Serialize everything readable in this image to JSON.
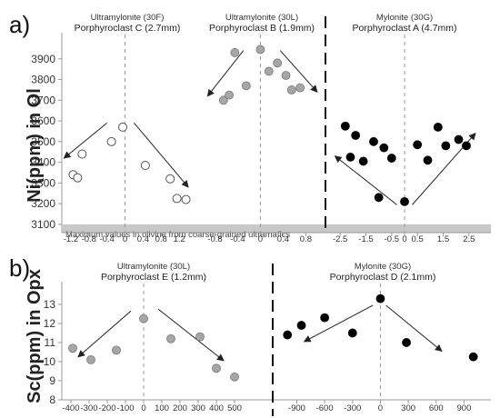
{
  "chart_data": [
    {
      "type": "scatter",
      "panel_label": "a)",
      "ylabel": "Ni(ppm) in Ol",
      "ylim": [
        3060,
        4000
      ],
      "yticks": [
        3100,
        3200,
        3300,
        3400,
        3500,
        3600,
        3700,
        3800,
        3900
      ],
      "shaded_band": {
        "y_from": 3060,
        "y_to": 3100,
        "label": "Maximum values in olivine from coarse-grained ultramafics"
      },
      "subplots": [
        {
          "title1": "Ultramylonite (30F)",
          "title2": "Porphyroclast C (2.7mm)",
          "xlim": [
            -1.4,
            1.5
          ],
          "xticks": [
            -1.2,
            -0.8,
            -0.4,
            0,
            0.4,
            0.8,
            1.2
          ],
          "marker": "open",
          "points": [
            {
              "x": -1.15,
              "y": 3340
            },
            {
              "x": -1.05,
              "y": 3325
            },
            {
              "x": -0.95,
              "y": 3440
            },
            {
              "x": -0.3,
              "y": 3500
            },
            {
              "x": -0.05,
              "y": 3570
            },
            {
              "x": 0.45,
              "y": 3385
            },
            {
              "x": 1.0,
              "y": 3320
            },
            {
              "x": 1.15,
              "y": 3225
            },
            {
              "x": 1.35,
              "y": 3220
            }
          ],
          "arrows": [
            {
              "from": [
                -0.4,
                3590
              ],
              "to": [
                -1.35,
                3420
              ]
            },
            {
              "from": [
                0.2,
                3590
              ],
              "to": [
                1.4,
                3280
              ]
            }
          ]
        },
        {
          "title1": "Ultramylonite (30L)",
          "title2": "Porphyroclast B (1.9mm)",
          "xlim": [
            -1.0,
            1.05
          ],
          "xticks": [
            -0.8,
            -0.4,
            0,
            0.4,
            0.8
          ],
          "marker": "gray",
          "points": [
            {
              "x": -0.65,
              "y": 3700
            },
            {
              "x": -0.55,
              "y": 3725
            },
            {
              "x": -0.45,
              "y": 3930
            },
            {
              "x": -0.25,
              "y": 3770
            },
            {
              "x": 0.0,
              "y": 3945
            },
            {
              "x": 0.15,
              "y": 3840
            },
            {
              "x": 0.3,
              "y": 3880
            },
            {
              "x": 0.45,
              "y": 3820
            },
            {
              "x": 0.55,
              "y": 3750
            },
            {
              "x": 0.7,
              "y": 3760
            }
          ],
          "arrows": [
            {
              "from": [
                -0.3,
                3940
              ],
              "to": [
                -0.93,
                3720
              ]
            },
            {
              "from": [
                0.35,
                3940
              ],
              "to": [
                1.0,
                3740
              ]
            }
          ]
        },
        {
          "title1": "Mylonite (30G)",
          "title2": "Porphyroclast A (4.7mm)",
          "xlim": [
            -3.0,
            3.0
          ],
          "xticks": [
            -2.5,
            -1.5,
            -0.5,
            0,
            0.5,
            1.5,
            2.5
          ],
          "marker": "filled",
          "points": [
            {
              "x": -2.3,
              "y": 3575
            },
            {
              "x": -1.9,
              "y": 3530
            },
            {
              "x": -2.1,
              "y": 3425
            },
            {
              "x": -1.6,
              "y": 3405
            },
            {
              "x": -1.2,
              "y": 3500
            },
            {
              "x": -0.8,
              "y": 3470
            },
            {
              "x": -0.5,
              "y": 3420
            },
            {
              "x": -1.0,
              "y": 3230
            },
            {
              "x": 0.0,
              "y": 3210
            },
            {
              "x": 0.5,
              "y": 3485
            },
            {
              "x": 0.9,
              "y": 3410
            },
            {
              "x": 1.3,
              "y": 3570
            },
            {
              "x": 1.6,
              "y": 3480
            },
            {
              "x": 2.1,
              "y": 3510
            },
            {
              "x": 2.4,
              "y": 3480
            }
          ],
          "arrows": [
            {
              "from": [
                -0.3,
                3195
              ],
              "to": [
                -2.7,
                3430
              ]
            },
            {
              "from": [
                0.3,
                3195
              ],
              "to": [
                2.75,
                3540
              ]
            }
          ]
        }
      ]
    },
    {
      "type": "scatter",
      "panel_label": "b)",
      "ylabel": "Sc(ppm) in Opx",
      "ylim": [
        8,
        13.9
      ],
      "yticks": [
        8,
        9,
        10,
        11,
        12,
        13
      ],
      "subplots": [
        {
          "title1": "Ultramylonite (30L)",
          "title2": "Porphyroclast E (1.2mm)",
          "xlim": [
            -450,
            560
          ],
          "xticks": [
            -400,
            -300,
            -200,
            -100,
            0,
            100,
            200,
            300,
            400,
            500
          ],
          "marker": "gray",
          "points": [
            {
              "x": -390,
              "y": 10.7
            },
            {
              "x": -290,
              "y": 10.1
            },
            {
              "x": -150,
              "y": 10.6
            },
            {
              "x": 0,
              "y": 12.25
            },
            {
              "x": 150,
              "y": 11.2
            },
            {
              "x": 310,
              "y": 11.3
            },
            {
              "x": 400,
              "y": 9.65
            },
            {
              "x": 500,
              "y": 9.2
            }
          ],
          "arrows": [
            {
              "from": [
                -70,
                12.65
              ],
              "to": [
                -360,
                10.25
              ]
            },
            {
              "from": [
                80,
                12.75
              ],
              "to": [
                440,
                10.05
              ]
            }
          ]
        },
        {
          "title1": "Mylonite (30G)",
          "title2": "Porphyroclast D (2.1mm)",
          "xlim": [
            -1100,
            1150
          ],
          "xticks": [
            -900,
            -600,
            -300,
            0,
            300,
            600,
            900
          ],
          "marker": "filled",
          "points": [
            {
              "x": -1000,
              "y": 11.4
            },
            {
              "x": -850,
              "y": 11.9
            },
            {
              "x": -600,
              "y": 12.3
            },
            {
              "x": -300,
              "y": 11.5
            },
            {
              "x": 0,
              "y": 13.3
            },
            {
              "x": 280,
              "y": 11.0
            },
            {
              "x": 1000,
              "y": 10.25
            }
          ],
          "arrows": [
            {
              "from": [
                -80,
                12.95
              ],
              "to": [
                -820,
                11.05
              ]
            },
            {
              "from": [
                60,
                12.95
              ],
              "to": [
                660,
                10.55
              ]
            }
          ]
        }
      ]
    }
  ]
}
